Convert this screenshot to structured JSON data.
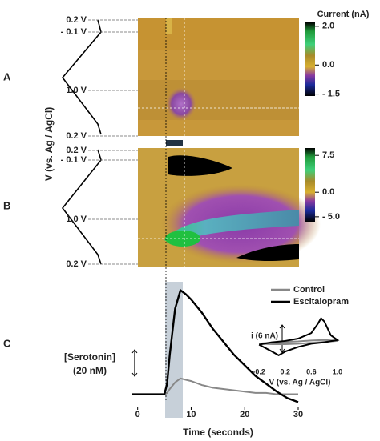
{
  "chart_data": [
    {
      "type": "colorplot",
      "panel_label": "A",
      "y_label": "V (vs. Ag / AgCl)",
      "potential_labels": [
        "0.2 V",
        "- 0.1 V",
        "1.0 V",
        "0.2 V"
      ],
      "colorbar_title": "Current (nA)",
      "clim": [
        -1.6,
        2.2
      ],
      "colorbar_ticks": [
        {
          "value": 2.0,
          "label": "2.0"
        },
        {
          "value": 0.0,
          "label": "0.0"
        },
        {
          "value": -1.5,
          "label": "- 1.5"
        }
      ]
    },
    {
      "type": "colorplot",
      "panel_label": "B",
      "potential_labels": [
        "0.2 V",
        "- 0.1 V",
        "1.0 V",
        "0.2 V"
      ],
      "clim": [
        -6,
        9
      ],
      "colorbar_ticks": [
        7.5,
        {
          "value": 0.0,
          "label": "0.0"
        },
        {
          "value": -5.0,
          "label": "- 5.0"
        }
      ]
    },
    {
      "type": "line",
      "panel_label": "C",
      "x_label": "Time (seconds)",
      "scale_bar_label": [
        "[Serotonin]",
        "(20 nM)"
      ],
      "xlim": [
        -1,
        30
      ],
      "xticks": [
        0,
        10,
        20,
        30
      ],
      "ylim": [
        -10,
        80
      ],
      "x": [
        -1,
        1,
        3,
        5,
        5.5,
        6,
        7,
        8,
        9,
        10,
        12,
        14,
        16,
        18,
        20,
        22,
        24,
        26,
        28,
        30
      ],
      "series": [
        {
          "name": "Control",
          "color": "#888888",
          "values": [
            0,
            0,
            0,
            0,
            1,
            4,
            9,
            12,
            11,
            10,
            7,
            5,
            4,
            3,
            2,
            1,
            1,
            0,
            0,
            0
          ]
        },
        {
          "name": "Escitalopram",
          "color": "#000000",
          "values": [
            0,
            0,
            0,
            0,
            8,
            30,
            65,
            79,
            76,
            72,
            62,
            50,
            40,
            30,
            22,
            14,
            8,
            2,
            -3,
            -6
          ]
        }
      ]
    },
    {
      "type": "cv",
      "x_label": "V (vs. Ag / AgCl)",
      "y_label": "i (6 nA)",
      "xlim": [
        -0.3,
        1.05
      ],
      "ylim": [
        -3,
        6
      ],
      "xticks": [
        -0.2,
        0.2,
        0.6,
        {
          "value": 1.0,
          "label": "1.0"
        }
      ],
      "series": [
        {
          "name": "Control",
          "color": "#888888",
          "x": [
            -0.2,
            0,
            0.2,
            0.4,
            0.6,
            0.8,
            1.0,
            0.8,
            0.6,
            0.4,
            0.2,
            0,
            -0.2
          ],
          "values": [
            -0.3,
            0,
            0.1,
            0.2,
            0.4,
            0.5,
            0.3,
            0.1,
            -0.1,
            -0.3,
            -0.4,
            -0.4,
            -0.3
          ]
        },
        {
          "name": "Escitalopram",
          "color": "#000000",
          "x": [
            -0.2,
            0,
            0.2,
            0.4,
            0.6,
            0.7,
            0.75,
            0.8,
            0.9,
            1.0,
            0.8,
            0.6,
            0.4,
            0.2,
            0.1,
            0,
            -0.2
          ],
          "values": [
            -0.5,
            0,
            0.3,
            0.8,
            2,
            4,
            5.2,
            4.5,
            1.5,
            0.5,
            0,
            -0.3,
            -1,
            -2,
            -2.8,
            -2,
            -0.5
          ]
        }
      ]
    }
  ]
}
